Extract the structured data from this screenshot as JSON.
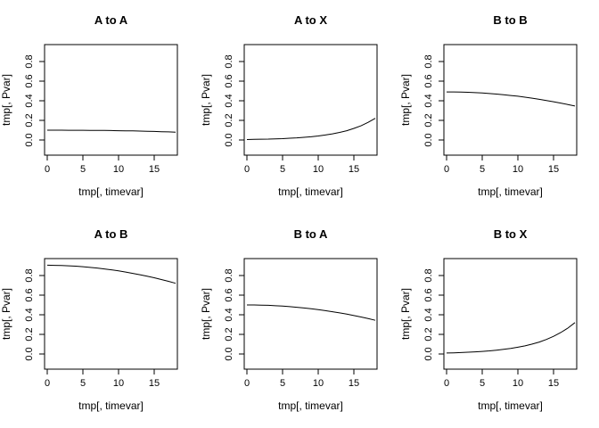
{
  "figure": {
    "background": "#ffffff",
    "rows": 2,
    "cols": 3
  },
  "chart_data": [
    {
      "type": "line",
      "title": "A to A",
      "xlabel": "tmp[, timevar]",
      "ylabel": "tmp[, Pvar]",
      "legend": "none",
      "grid": "off",
      "color": "#000000",
      "xlim": [
        -0.375,
        18.25
      ],
      "ylim": [
        -0.1545,
        0.9727
      ],
      "x_ticks": [
        0,
        5,
        10,
        15
      ],
      "x_tick_labels": [
        "0",
        "5",
        "10",
        "15"
      ],
      "y_ticks": [
        0,
        0.2,
        0.4,
        0.6,
        0.8
      ],
      "y_tick_labels": [
        "0.0",
        "0.2",
        "0.4",
        "0.6",
        "0.8"
      ],
      "x": [
        0,
        1,
        2,
        3,
        4,
        5,
        6,
        7,
        8,
        9,
        10,
        11,
        12,
        13,
        14,
        15,
        16,
        17,
        18
      ],
      "y": [
        0.1,
        0.1,
        0.1,
        0.099,
        0.099,
        0.099,
        0.098,
        0.098,
        0.097,
        0.096,
        0.095,
        0.094,
        0.093,
        0.091,
        0.089,
        0.087,
        0.085,
        0.083,
        0.08
      ]
    },
    {
      "type": "line",
      "title": "A to X",
      "xlabel": "tmp[, timevar]",
      "ylabel": "tmp[, Pvar]",
      "legend": "none",
      "grid": "off",
      "color": "#000000",
      "xlim": [
        -0.375,
        18.25
      ],
      "ylim": [
        -0.1545,
        0.9727
      ],
      "x_ticks": [
        0,
        5,
        10,
        15
      ],
      "x_tick_labels": [
        "0",
        "5",
        "10",
        "15"
      ],
      "y_ticks": [
        0,
        0.2,
        0.4,
        0.6,
        0.8
      ],
      "y_tick_labels": [
        "0.0",
        "0.2",
        "0.4",
        "0.6",
        "0.8"
      ],
      "x": [
        0,
        1,
        2,
        3,
        4,
        5,
        6,
        7,
        8,
        9,
        10,
        11,
        12,
        13,
        14,
        15,
        16,
        17,
        18
      ],
      "y": [
        0.005,
        0.006,
        0.008,
        0.009,
        0.012,
        0.014,
        0.018,
        0.022,
        0.027,
        0.033,
        0.041,
        0.051,
        0.063,
        0.077,
        0.095,
        0.118,
        0.145,
        0.18,
        0.221
      ]
    },
    {
      "type": "line",
      "title": "B to B",
      "xlabel": "tmp[, timevar]",
      "ylabel": "tmp[, Pvar]",
      "legend": "none",
      "grid": "off",
      "color": "#000000",
      "xlim": [
        -0.375,
        18.25
      ],
      "ylim": [
        -0.1545,
        0.9727
      ],
      "x_ticks": [
        0,
        5,
        10,
        15
      ],
      "x_tick_labels": [
        "0",
        "5",
        "10",
        "15"
      ],
      "y_ticks": [
        0,
        0.2,
        0.4,
        0.6,
        0.8
      ],
      "y_tick_labels": [
        "0.0",
        "0.2",
        "0.4",
        "0.6",
        "0.8"
      ],
      "x": [
        0,
        1,
        2,
        3,
        4,
        5,
        6,
        7,
        8,
        9,
        10,
        11,
        12,
        13,
        14,
        15,
        16,
        17,
        18
      ],
      "y": [
        0.49,
        0.49,
        0.488,
        0.486,
        0.483,
        0.479,
        0.474,
        0.468,
        0.462,
        0.454,
        0.446,
        0.436,
        0.426,
        0.415,
        0.403,
        0.39,
        0.376,
        0.362,
        0.346
      ]
    },
    {
      "type": "line",
      "title": "A to B",
      "xlabel": "tmp[, timevar]",
      "ylabel": "tmp[, Pvar]",
      "legend": "none",
      "grid": "off",
      "color": "#000000",
      "xlim": [
        -0.375,
        18.25
      ],
      "ylim": [
        -0.1545,
        0.9727
      ],
      "x_ticks": [
        0,
        5,
        10,
        15
      ],
      "x_tick_labels": [
        "0",
        "5",
        "10",
        "15"
      ],
      "y_ticks": [
        0,
        0.2,
        0.4,
        0.6,
        0.8
      ],
      "y_tick_labels": [
        "0.0",
        "0.2",
        "0.4",
        "0.6",
        "0.8"
      ],
      "x": [
        0,
        1,
        2,
        3,
        4,
        5,
        6,
        7,
        8,
        9,
        10,
        11,
        12,
        13,
        14,
        15,
        16,
        17,
        18
      ],
      "y": [
        0.905,
        0.904,
        0.902,
        0.899,
        0.895,
        0.89,
        0.883,
        0.876,
        0.867,
        0.858,
        0.847,
        0.835,
        0.822,
        0.808,
        0.793,
        0.777,
        0.759,
        0.741,
        0.721
      ]
    },
    {
      "type": "line",
      "title": "B to A",
      "xlabel": "tmp[, timevar]",
      "ylabel": "tmp[, Pvar]",
      "legend": "none",
      "grid": "off",
      "color": "#000000",
      "xlim": [
        -0.375,
        18.25
      ],
      "ylim": [
        -0.1545,
        0.9727
      ],
      "x_ticks": [
        0,
        5,
        10,
        15
      ],
      "x_tick_labels": [
        "0",
        "5",
        "10",
        "15"
      ],
      "y_ticks": [
        0,
        0.2,
        0.4,
        0.6,
        0.8
      ],
      "y_tick_labels": [
        "0.0",
        "0.2",
        "0.4",
        "0.6",
        "0.8"
      ],
      "x": [
        0,
        1,
        2,
        3,
        4,
        5,
        6,
        7,
        8,
        9,
        10,
        11,
        12,
        13,
        14,
        15,
        16,
        17,
        18
      ],
      "y": [
        0.5,
        0.5,
        0.498,
        0.496,
        0.492,
        0.488,
        0.483,
        0.476,
        0.469,
        0.461,
        0.452,
        0.442,
        0.431,
        0.419,
        0.406,
        0.392,
        0.377,
        0.361,
        0.344
      ]
    },
    {
      "type": "line",
      "title": "B to X",
      "xlabel": "tmp[, timevar]",
      "ylabel": "tmp[, Pvar]",
      "legend": "none",
      "grid": "off",
      "color": "#000000",
      "xlim": [
        -0.375,
        18.25
      ],
      "ylim": [
        -0.1545,
        0.9727
      ],
      "x_ticks": [
        0,
        5,
        10,
        15
      ],
      "x_tick_labels": [
        "0",
        "5",
        "10",
        "15"
      ],
      "y_ticks": [
        0,
        0.2,
        0.4,
        0.6,
        0.8
      ],
      "y_tick_labels": [
        "0.0",
        "0.2",
        "0.4",
        "0.6",
        "0.8"
      ],
      "x": [
        0,
        1,
        2,
        3,
        4,
        5,
        6,
        7,
        8,
        9,
        10,
        11,
        12,
        13,
        14,
        15,
        16,
        17,
        18
      ],
      "y": [
        0.01,
        0.012,
        0.015,
        0.018,
        0.022,
        0.026,
        0.032,
        0.039,
        0.047,
        0.056,
        0.069,
        0.083,
        0.101,
        0.122,
        0.148,
        0.18,
        0.218,
        0.264,
        0.32
      ]
    }
  ]
}
